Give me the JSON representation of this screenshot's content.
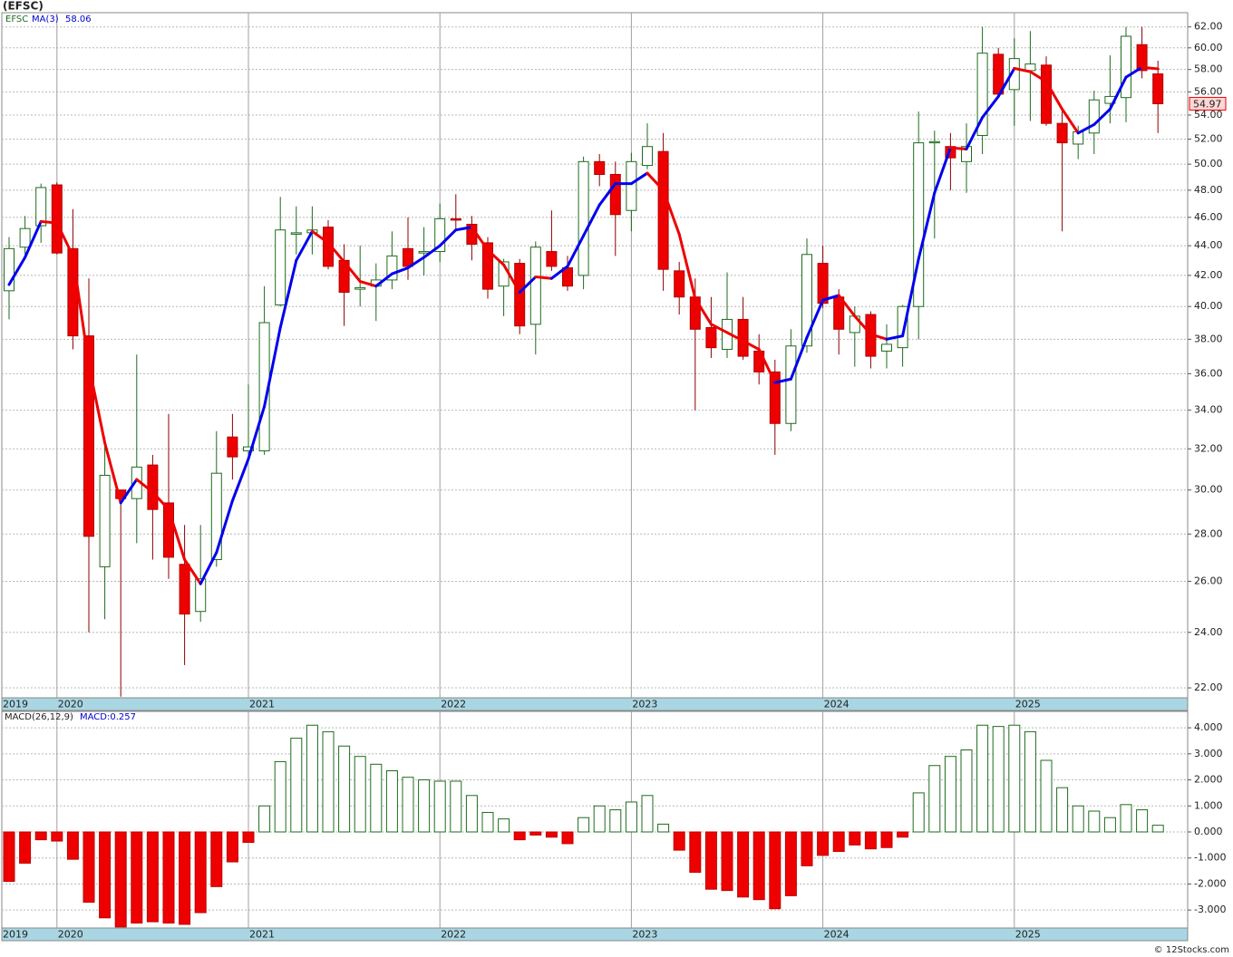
{
  "chart_data": [
    {
      "type": "candlestick",
      "title": "(EFSC)",
      "symbol": "EFSC",
      "categories": [
        "2019",
        null,
        null,
        "2020",
        null,
        null,
        null,
        null,
        null,
        null,
        null,
        null,
        null,
        null,
        null,
        "2021",
        null,
        null,
        null,
        null,
        null,
        null,
        null,
        null,
        null,
        null,
        null,
        "2022",
        null,
        null,
        null,
        null,
        null,
        null,
        null,
        null,
        null,
        null,
        null,
        "2023",
        null,
        null,
        null,
        null,
        null,
        null,
        null,
        null,
        null,
        null,
        null,
        "2024",
        null,
        null,
        null,
        null,
        null,
        null,
        null,
        null,
        null,
        null,
        null,
        "2025",
        null,
        null,
        null,
        null,
        null,
        null,
        null,
        null,
        null
      ],
      "open": [
        41.0,
        43.9,
        45.4,
        48.4,
        43.8,
        38.2,
        26.6,
        30.0,
        29.6,
        31.2,
        29.4,
        26.7,
        24.8,
        26.9,
        32.6,
        31.9,
        31.9,
        40.1,
        44.8,
        44.9,
        45.3,
        43.0,
        41.1,
        41.3,
        41.7,
        43.8,
        43.5,
        43.6,
        45.9,
        45.5,
        44.2,
        41.3,
        42.8,
        38.9,
        43.6,
        42.5,
        42.0,
        50.2,
        49.2,
        46.5,
        49.9,
        51.0,
        42.3,
        40.6,
        38.7,
        37.4,
        39.2,
        37.3,
        36.1,
        33.3,
        37.6,
        42.8,
        40.6,
        38.4,
        39.5,
        37.3,
        37.5,
        40.0,
        51.7,
        51.4,
        50.2,
        52.3,
        59.4,
        56.2,
        57.9,
        58.4,
        53.3,
        51.6,
        52.5,
        55.0,
        55.5,
        60.3,
        57.6
      ],
      "high": [
        44.6,
        46.1,
        48.5,
        48.6,
        46.6,
        41.8,
        32.6,
        30.0,
        37.1,
        31.7,
        33.8,
        28.4,
        28.4,
        32.9,
        33.8,
        35.4,
        41.3,
        47.5,
        46.8,
        46.8,
        45.8,
        44.1,
        44.0,
        42.8,
        45.0,
        46.0,
        45.3,
        47.0,
        47.7,
        46.1,
        44.6,
        43.1,
        43.1,
        44.3,
        46.5,
        43.3,
        50.6,
        50.8,
        50.2,
        50.9,
        53.3,
        52.5,
        42.9,
        41.8,
        40.6,
        42.2,
        40.6,
        38.3,
        36.8,
        38.6,
        44.5,
        44.0,
        41.1,
        40.0,
        39.7,
        38.9,
        40.1,
        54.3,
        52.7,
        52.5,
        53.3,
        62.0,
        60.0,
        60.9,
        61.6,
        59.2,
        54.6,
        53.1,
        56.1,
        59.3,
        62.0,
        62.0,
        58.8
      ],
      "low": [
        39.2,
        43.4,
        44.2,
        43.4,
        37.4,
        24.0,
        24.5,
        21.7,
        27.6,
        26.9,
        26.1,
        22.8,
        24.4,
        26.6,
        30.5,
        31.6,
        31.7,
        40.0,
        43.4,
        43.4,
        42.4,
        38.8,
        40.0,
        39.1,
        41.1,
        41.7,
        42.0,
        42.9,
        45.2,
        43.0,
        40.5,
        39.4,
        38.3,
        37.1,
        42.3,
        41.0,
        41.1,
        48.3,
        43.3,
        45.0,
        49.6,
        41.0,
        39.5,
        34.0,
        36.9,
        36.9,
        36.8,
        35.4,
        31.7,
        32.9,
        37.2,
        39.9,
        37.1,
        36.4,
        36.3,
        36.3,
        36.4,
        38.0,
        44.5,
        48.0,
        47.8,
        50.8,
        55.5,
        53.1,
        53.5,
        53.1,
        45.0,
        50.4,
        50.8,
        53.3,
        53.4,
        57.2,
        52.5
      ],
      "close": [
        43.8,
        45.2,
        48.2,
        43.5,
        38.2,
        27.9,
        30.7,
        29.6,
        31.1,
        29.1,
        27.0,
        24.7,
        26.1,
        30.8,
        31.6,
        32.1,
        39.0,
        45.1,
        44.9,
        45.1,
        42.6,
        40.9,
        41.2,
        41.7,
        43.3,
        42.6,
        43.6,
        45.9,
        45.8,
        44.1,
        41.1,
        42.9,
        38.8,
        43.9,
        42.6,
        41.3,
        50.2,
        49.2,
        46.2,
        50.2,
        51.4,
        42.4,
        40.6,
        38.6,
        37.5,
        39.2,
        37.0,
        36.1,
        33.3,
        37.6,
        43.4,
        40.2,
        38.6,
        39.4,
        37.0,
        37.7,
        40.0,
        51.7,
        51.8,
        50.5,
        51.4,
        59.5,
        55.8,
        59.0,
        58.5,
        53.3,
        51.7,
        52.6,
        55.3,
        55.6,
        61.1,
        57.9,
        54.97
      ],
      "last_label": "54.97",
      "ma": {
        "name": "MA(3)",
        "value_label": "58.06",
        "values": [
          41.4,
          43.2,
          45.7,
          45.6,
          43.3,
          36.5,
          32.3,
          29.4,
          30.5,
          29.9,
          29.1,
          26.9,
          25.9,
          27.2,
          29.5,
          31.5,
          34.2,
          38.7,
          43.0,
          45.0,
          44.2,
          42.9,
          41.6,
          41.3,
          42.1,
          42.5,
          43.2,
          44.0,
          45.1,
          45.3,
          43.7,
          42.7,
          40.9,
          41.9,
          41.8,
          42.6,
          44.7,
          46.9,
          48.5,
          48.5,
          49.3,
          48.0,
          44.8,
          40.5,
          38.9,
          38.4,
          37.9,
          37.4,
          35.5,
          35.7,
          38.1,
          40.4,
          40.7,
          39.4,
          38.3,
          38.0,
          38.2,
          43.1,
          47.8,
          51.3,
          51.2,
          53.8,
          55.6,
          58.1,
          57.8,
          56.9,
          54.5,
          52.5,
          53.2,
          54.5,
          57.3,
          58.2,
          58.06
        ]
      },
      "ylim": [
        21.66,
        63.4
      ],
      "log_scale": true,
      "yticks": [
        {
          "value": 22,
          "label": "22.00"
        },
        {
          "value": 24,
          "label": "24.00"
        },
        {
          "value": 26,
          "label": "26.00"
        },
        {
          "value": 28,
          "label": "28.00"
        },
        {
          "value": 30,
          "label": "30.00"
        },
        {
          "value": 32,
          "label": "32.00"
        },
        {
          "value": 34,
          "label": "34.00"
        },
        {
          "value": 36,
          "label": "36.00"
        },
        {
          "value": 38,
          "label": "38.00"
        },
        {
          "value": 40,
          "label": "40.00"
        },
        {
          "value": 42,
          "label": "42.00"
        },
        {
          "value": 44,
          "label": "44.00"
        },
        {
          "value": 46,
          "label": "46.00"
        },
        {
          "value": 48,
          "label": "48.00"
        },
        {
          "value": 50,
          "label": "50.00"
        },
        {
          "value": 52,
          "label": "52.00"
        },
        {
          "value": 54,
          "label": "54.00"
        },
        {
          "value": 56,
          "label": "56.00"
        },
        {
          "value": 58,
          "label": "58.00"
        },
        {
          "value": 60,
          "label": "60.00"
        },
        {
          "value": 62,
          "label": "62.00"
        }
      ],
      "grid": true,
      "up_color": "#1e6b1e",
      "down_color": "#ee0000",
      "ma_up_color": "#0000ee",
      "ma_down_color": "#ee0000"
    },
    {
      "type": "bar",
      "title": "MACD(26,12,9)",
      "value_label": "MACD:0.257",
      "categories": [
        "2019",
        null,
        null,
        "2020",
        null,
        null,
        null,
        null,
        null,
        null,
        null,
        null,
        null,
        null,
        null,
        "2021",
        null,
        null,
        null,
        null,
        null,
        null,
        null,
        null,
        null,
        null,
        null,
        "2022",
        null,
        null,
        null,
        null,
        null,
        null,
        null,
        null,
        null,
        null,
        null,
        "2023",
        null,
        null,
        null,
        null,
        null,
        null,
        null,
        null,
        null,
        null,
        null,
        "2024",
        null,
        null,
        null,
        null,
        null,
        null,
        null,
        null,
        null,
        null,
        null,
        "2025",
        null,
        null,
        null,
        null,
        null,
        null,
        null,
        null,
        null
      ],
      "values": [
        -1.9,
        -1.2,
        -0.3,
        -0.35,
        -1.05,
        -2.7,
        -3.3,
        -3.65,
        -3.5,
        -3.45,
        -3.5,
        -3.55,
        -3.1,
        -2.1,
        -1.15,
        -0.4,
        1.0,
        2.7,
        3.6,
        4.1,
        3.85,
        3.3,
        2.9,
        2.6,
        2.35,
        2.1,
        2.0,
        1.95,
        1.95,
        1.4,
        0.75,
        0.5,
        -0.3,
        -0.12,
        -0.2,
        -0.45,
        0.55,
        1.0,
        0.85,
        1.15,
        1.4,
        0.3,
        -0.7,
        -1.55,
        -2.2,
        -2.25,
        -2.5,
        -2.6,
        -2.95,
        -2.45,
        -1.3,
        -0.9,
        -0.75,
        -0.5,
        -0.65,
        -0.6,
        -0.2,
        1.5,
        2.55,
        2.9,
        3.15,
        4.1,
        4.05,
        4.1,
        3.85,
        2.75,
        1.7,
        1.0,
        0.8,
        0.55,
        1.05,
        0.85,
        0.257
      ],
      "ylim": [
        -3.69,
        4.63
      ],
      "yticks": [
        {
          "value": -3,
          "label": "-3.000"
        },
        {
          "value": -2,
          "label": "-2.000"
        },
        {
          "value": -1,
          "label": "-1.000"
        },
        {
          "value": 0,
          "label": "0.000"
        },
        {
          "value": 1,
          "label": "1.000"
        },
        {
          "value": 2,
          "label": "2.000"
        },
        {
          "value": 3,
          "label": "3.000"
        },
        {
          "value": 4,
          "label": "4.000"
        }
      ],
      "grid": true,
      "up_color": "#1e6b1e",
      "down_color": "#ee0000"
    }
  ],
  "footer": "© 12Stocks.com"
}
